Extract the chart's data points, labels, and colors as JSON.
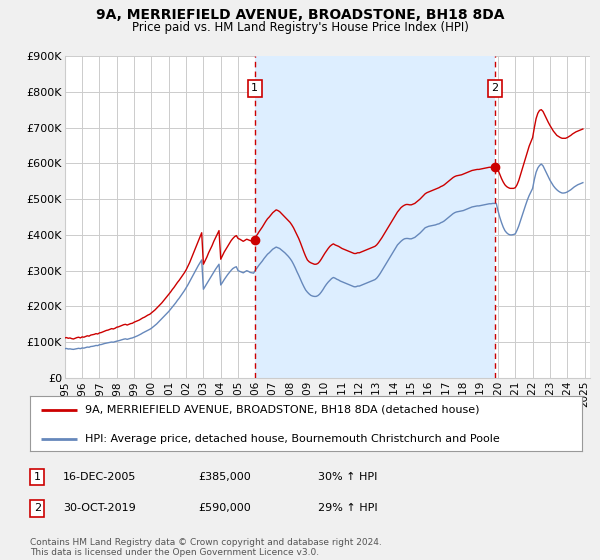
{
  "title": "9A, MERRIEFIELD AVENUE, BROADSTONE, BH18 8DA",
  "subtitle": "Price paid vs. HM Land Registry's House Price Index (HPI)",
  "legend_line1": "9A, MERRIEFIELD AVENUE, BROADSTONE, BH18 8DA (detached house)",
  "legend_line2": "HPI: Average price, detached house, Bournemouth Christchurch and Poole",
  "footnote": "Contains HM Land Registry data © Crown copyright and database right 2024.\nThis data is licensed under the Open Government Licence v3.0.",
  "sale1_date": "16-DEC-2005",
  "sale1_price": "£385,000",
  "sale1_hpi": "30% ↑ HPI",
  "sale1_x": 2005.96,
  "sale1_y": 385000,
  "sale2_date": "30-OCT-2019",
  "sale2_price": "£590,000",
  "sale2_hpi": "29% ↑ HPI",
  "sale2_x": 2019.83,
  "sale2_y": 590000,
  "red_color": "#cc0000",
  "blue_color": "#6688bb",
  "shade_color": "#ddeeff",
  "background_color": "#f0f0f0",
  "plot_bg_color": "#ffffff",
  "ylim": [
    0,
    900000
  ],
  "xlim": [
    1995.0,
    2025.3
  ],
  "red_line_x": [
    1995.0,
    1995.1,
    1995.2,
    1995.3,
    1995.4,
    1995.5,
    1995.6,
    1995.7,
    1995.8,
    1995.9,
    1996.0,
    1996.1,
    1996.2,
    1996.3,
    1996.4,
    1996.5,
    1996.6,
    1996.7,
    1996.8,
    1996.9,
    1997.0,
    1997.1,
    1997.2,
    1997.3,
    1997.4,
    1997.5,
    1997.6,
    1997.7,
    1997.8,
    1997.9,
    1998.0,
    1998.1,
    1998.2,
    1998.3,
    1998.4,
    1998.5,
    1998.6,
    1998.7,
    1998.8,
    1998.9,
    1999.0,
    1999.1,
    1999.2,
    1999.3,
    1999.4,
    1999.5,
    1999.6,
    1999.7,
    1999.8,
    1999.9,
    2000.0,
    2000.1,
    2000.2,
    2000.3,
    2000.4,
    2000.5,
    2000.6,
    2000.7,
    2000.8,
    2000.9,
    2001.0,
    2001.1,
    2001.2,
    2001.3,
    2001.4,
    2001.5,
    2001.6,
    2001.7,
    2001.8,
    2001.9,
    2002.0,
    2002.1,
    2002.2,
    2002.3,
    2002.4,
    2002.5,
    2002.6,
    2002.7,
    2002.8,
    2002.9,
    2003.0,
    2003.1,
    2003.2,
    2003.3,
    2003.4,
    2003.5,
    2003.6,
    2003.7,
    2003.8,
    2003.9,
    2004.0,
    2004.1,
    2004.2,
    2004.3,
    2004.4,
    2004.5,
    2004.6,
    2004.7,
    2004.8,
    2004.9,
    2005.0,
    2005.1,
    2005.2,
    2005.3,
    2005.4,
    2005.5,
    2005.6,
    2005.7,
    2005.8,
    2005.9,
    2005.96,
    2006.0,
    2006.1,
    2006.2,
    2006.3,
    2006.4,
    2006.5,
    2006.6,
    2006.7,
    2006.8,
    2006.9,
    2007.0,
    2007.1,
    2007.2,
    2007.3,
    2007.4,
    2007.5,
    2007.6,
    2007.7,
    2007.8,
    2007.9,
    2008.0,
    2008.1,
    2008.2,
    2008.3,
    2008.4,
    2008.5,
    2008.6,
    2008.7,
    2008.8,
    2008.9,
    2009.0,
    2009.1,
    2009.2,
    2009.3,
    2009.4,
    2009.5,
    2009.6,
    2009.7,
    2009.8,
    2009.9,
    2010.0,
    2010.1,
    2010.2,
    2010.3,
    2010.4,
    2010.5,
    2010.6,
    2010.7,
    2010.8,
    2010.9,
    2011.0,
    2011.1,
    2011.2,
    2011.3,
    2011.4,
    2011.5,
    2011.6,
    2011.7,
    2011.8,
    2011.9,
    2012.0,
    2012.1,
    2012.2,
    2012.3,
    2012.4,
    2012.5,
    2012.6,
    2012.7,
    2012.8,
    2012.9,
    2013.0,
    2013.1,
    2013.2,
    2013.3,
    2013.4,
    2013.5,
    2013.6,
    2013.7,
    2013.8,
    2013.9,
    2014.0,
    2014.1,
    2014.2,
    2014.3,
    2014.4,
    2014.5,
    2014.6,
    2014.7,
    2014.8,
    2014.9,
    2015.0,
    2015.1,
    2015.2,
    2015.3,
    2015.4,
    2015.5,
    2015.6,
    2015.7,
    2015.8,
    2015.9,
    2016.0,
    2016.1,
    2016.2,
    2016.3,
    2016.4,
    2016.5,
    2016.6,
    2016.7,
    2016.8,
    2016.9,
    2017.0,
    2017.1,
    2017.2,
    2017.3,
    2017.4,
    2017.5,
    2017.6,
    2017.7,
    2017.8,
    2017.9,
    2018.0,
    2018.1,
    2018.2,
    2018.3,
    2018.4,
    2018.5,
    2018.6,
    2018.7,
    2018.8,
    2018.9,
    2019.0,
    2019.1,
    2019.2,
    2019.3,
    2019.4,
    2019.5,
    2019.6,
    2019.7,
    2019.8,
    2019.83,
    2020.0,
    2020.1,
    2020.2,
    2020.3,
    2020.4,
    2020.5,
    2020.6,
    2020.7,
    2020.8,
    2020.9,
    2021.0,
    2021.1,
    2021.2,
    2021.3,
    2021.4,
    2021.5,
    2021.6,
    2021.7,
    2021.8,
    2021.9,
    2022.0,
    2022.1,
    2022.2,
    2022.3,
    2022.4,
    2022.5,
    2022.6,
    2022.7,
    2022.8,
    2022.9,
    2023.0,
    2023.1,
    2023.2,
    2023.3,
    2023.4,
    2023.5,
    2023.6,
    2023.7,
    2023.8,
    2023.9,
    2024.0,
    2024.1,
    2024.2,
    2024.3,
    2024.4,
    2024.5,
    2024.6,
    2024.7,
    2024.8,
    2024.9
  ],
  "red_line_y": [
    112000,
    113000,
    111000,
    112000,
    110000,
    109000,
    111000,
    113000,
    114000,
    112000,
    115000,
    114000,
    116000,
    118000,
    117000,
    120000,
    121000,
    122000,
    124000,
    123000,
    126000,
    127000,
    129000,
    131000,
    133000,
    134000,
    136000,
    138000,
    137000,
    139000,
    142000,
    143000,
    145000,
    147000,
    149000,
    150000,
    148000,
    150000,
    152000,
    153000,
    156000,
    158000,
    160000,
    162000,
    165000,
    168000,
    170000,
    173000,
    176000,
    178000,
    182000,
    186000,
    190000,
    195000,
    200000,
    205000,
    210000,
    216000,
    222000,
    228000,
    234000,
    240000,
    247000,
    253000,
    260000,
    267000,
    273000,
    280000,
    287000,
    294000,
    302000,
    312000,
    322000,
    334000,
    346000,
    358000,
    370000,
    382000,
    394000,
    406000,
    318000,
    328000,
    338000,
    350000,
    360000,
    370000,
    382000,
    392000,
    402000,
    412000,
    332000,
    342000,
    352000,
    360000,
    368000,
    376000,
    384000,
    390000,
    395000,
    398000,
    390000,
    388000,
    385000,
    382000,
    385000,
    388000,
    386000,
    384000,
    383000,
    382000,
    385000,
    395000,
    400000,
    408000,
    415000,
    422000,
    430000,
    438000,
    445000,
    450000,
    456000,
    462000,
    466000,
    470000,
    468000,
    465000,
    460000,
    455000,
    450000,
    445000,
    440000,
    435000,
    428000,
    420000,
    410000,
    400000,
    390000,
    378000,
    365000,
    352000,
    340000,
    330000,
    325000,
    322000,
    320000,
    318000,
    318000,
    320000,
    325000,
    332000,
    340000,
    348000,
    355000,
    362000,
    368000,
    372000,
    375000,
    372000,
    370000,
    368000,
    365000,
    362000,
    360000,
    358000,
    356000,
    354000,
    352000,
    350000,
    348000,
    348000,
    350000,
    350000,
    352000,
    354000,
    356000,
    358000,
    360000,
    362000,
    364000,
    366000,
    368000,
    372000,
    378000,
    385000,
    392000,
    400000,
    408000,
    416000,
    424000,
    432000,
    440000,
    448000,
    456000,
    464000,
    470000,
    476000,
    480000,
    483000,
    485000,
    485000,
    484000,
    484000,
    486000,
    488000,
    492000,
    496000,
    500000,
    505000,
    510000,
    515000,
    518000,
    520000,
    522000,
    524000,
    526000,
    528000,
    530000,
    532000,
    535000,
    537000,
    540000,
    544000,
    548000,
    552000,
    556000,
    560000,
    563000,
    565000,
    566000,
    567000,
    568000,
    570000,
    572000,
    574000,
    576000,
    578000,
    580000,
    581000,
    582000,
    583000,
    583000,
    584000,
    585000,
    586000,
    587000,
    588000,
    589000,
    589000,
    590000,
    590000,
    590000,
    582000,
    570000,
    558000,
    548000,
    540000,
    535000,
    532000,
    530000,
    530000,
    530000,
    532000,
    540000,
    552000,
    568000,
    584000,
    600000,
    616000,
    632000,
    648000,
    660000,
    672000,
    700000,
    725000,
    740000,
    748000,
    750000,
    745000,
    735000,
    725000,
    715000,
    706000,
    698000,
    690000,
    684000,
    678000,
    675000,
    672000,
    670000,
    670000,
    670000,
    672000,
    675000,
    678000,
    682000,
    685000,
    688000,
    690000,
    692000,
    694000,
    696000
  ],
  "blue_line_x": [
    1995.0,
    1995.1,
    1995.2,
    1995.3,
    1995.4,
    1995.5,
    1995.6,
    1995.7,
    1995.8,
    1995.9,
    1996.0,
    1996.1,
    1996.2,
    1996.3,
    1996.4,
    1996.5,
    1996.6,
    1996.7,
    1996.8,
    1996.9,
    1997.0,
    1997.1,
    1997.2,
    1997.3,
    1997.4,
    1997.5,
    1997.6,
    1997.7,
    1997.8,
    1997.9,
    1998.0,
    1998.1,
    1998.2,
    1998.3,
    1998.4,
    1998.5,
    1998.6,
    1998.7,
    1998.8,
    1998.9,
    1999.0,
    1999.1,
    1999.2,
    1999.3,
    1999.4,
    1999.5,
    1999.6,
    1999.7,
    1999.8,
    1999.9,
    2000.0,
    2000.1,
    2000.2,
    2000.3,
    2000.4,
    2000.5,
    2000.6,
    2000.7,
    2000.8,
    2000.9,
    2001.0,
    2001.1,
    2001.2,
    2001.3,
    2001.4,
    2001.5,
    2001.6,
    2001.7,
    2001.8,
    2001.9,
    2002.0,
    2002.1,
    2002.2,
    2002.3,
    2002.4,
    2002.5,
    2002.6,
    2002.7,
    2002.8,
    2002.9,
    2003.0,
    2003.1,
    2003.2,
    2003.3,
    2003.4,
    2003.5,
    2003.6,
    2003.7,
    2003.8,
    2003.9,
    2004.0,
    2004.1,
    2004.2,
    2004.3,
    2004.4,
    2004.5,
    2004.6,
    2004.7,
    2004.8,
    2004.9,
    2005.0,
    2005.1,
    2005.2,
    2005.3,
    2005.4,
    2005.5,
    2005.6,
    2005.7,
    2005.8,
    2005.9,
    2006.0,
    2006.1,
    2006.2,
    2006.3,
    2006.4,
    2006.5,
    2006.6,
    2006.7,
    2006.8,
    2006.9,
    2007.0,
    2007.1,
    2007.2,
    2007.3,
    2007.4,
    2007.5,
    2007.6,
    2007.7,
    2007.8,
    2007.9,
    2008.0,
    2008.1,
    2008.2,
    2008.3,
    2008.4,
    2008.5,
    2008.6,
    2008.7,
    2008.8,
    2008.9,
    2009.0,
    2009.1,
    2009.2,
    2009.3,
    2009.4,
    2009.5,
    2009.6,
    2009.7,
    2009.8,
    2009.9,
    2010.0,
    2010.1,
    2010.2,
    2010.3,
    2010.4,
    2010.5,
    2010.6,
    2010.7,
    2010.8,
    2010.9,
    2011.0,
    2011.1,
    2011.2,
    2011.3,
    2011.4,
    2011.5,
    2011.6,
    2011.7,
    2011.8,
    2011.9,
    2012.0,
    2012.1,
    2012.2,
    2012.3,
    2012.4,
    2012.5,
    2012.6,
    2012.7,
    2012.8,
    2012.9,
    2013.0,
    2013.1,
    2013.2,
    2013.3,
    2013.4,
    2013.5,
    2013.6,
    2013.7,
    2013.8,
    2013.9,
    2014.0,
    2014.1,
    2014.2,
    2014.3,
    2014.4,
    2014.5,
    2014.6,
    2014.7,
    2014.8,
    2014.9,
    2015.0,
    2015.1,
    2015.2,
    2015.3,
    2015.4,
    2015.5,
    2015.6,
    2015.7,
    2015.8,
    2015.9,
    2016.0,
    2016.1,
    2016.2,
    2016.3,
    2016.4,
    2016.5,
    2016.6,
    2016.7,
    2016.8,
    2016.9,
    2017.0,
    2017.1,
    2017.2,
    2017.3,
    2017.4,
    2017.5,
    2017.6,
    2017.7,
    2017.8,
    2017.9,
    2018.0,
    2018.1,
    2018.2,
    2018.3,
    2018.4,
    2018.5,
    2018.6,
    2018.7,
    2018.8,
    2018.9,
    2019.0,
    2019.1,
    2019.2,
    2019.3,
    2019.4,
    2019.5,
    2019.6,
    2019.7,
    2019.8,
    2019.9,
    2020.0,
    2020.1,
    2020.2,
    2020.3,
    2020.4,
    2020.5,
    2020.6,
    2020.7,
    2020.8,
    2020.9,
    2021.0,
    2021.1,
    2021.2,
    2021.3,
    2021.4,
    2021.5,
    2021.6,
    2021.7,
    2021.8,
    2021.9,
    2022.0,
    2022.1,
    2022.2,
    2022.3,
    2022.4,
    2022.5,
    2022.6,
    2022.7,
    2022.8,
    2022.9,
    2023.0,
    2023.1,
    2023.2,
    2023.3,
    2023.4,
    2023.5,
    2023.6,
    2023.7,
    2023.8,
    2023.9,
    2024.0,
    2024.1,
    2024.2,
    2024.3,
    2024.4,
    2024.5,
    2024.6,
    2024.7,
    2024.8,
    2024.9
  ],
  "blue_line_y": [
    82000,
    82500,
    81000,
    81500,
    80500,
    80000,
    81000,
    82000,
    83000,
    82000,
    84000,
    83500,
    85000,
    86500,
    86000,
    88000,
    88500,
    89500,
    91000,
    90500,
    93000,
    93500,
    95000,
    96500,
    97500,
    98500,
    99500,
    100500,
    100000,
    101500,
    103000,
    104000,
    105500,
    107000,
    108500,
    109500,
    108000,
    109500,
    111000,
    112000,
    114000,
    116000,
    118000,
    120500,
    123000,
    126000,
    128500,
    131000,
    133500,
    136000,
    139000,
    143000,
    147000,
    151000,
    156000,
    161000,
    166000,
    171000,
    176000,
    181000,
    186000,
    192000,
    198000,
    204000,
    210000,
    217000,
    223000,
    230000,
    237000,
    244000,
    252000,
    260000,
    269000,
    278000,
    287000,
    296000,
    305000,
    314000,
    322000,
    330000,
    248000,
    256000,
    264000,
    272000,
    280000,
    288000,
    296000,
    304000,
    311000,
    318000,
    260000,
    267000,
    275000,
    282000,
    289000,
    295000,
    301000,
    306000,
    309000,
    311000,
    300000,
    298000,
    296000,
    294000,
    297000,
    300000,
    298000,
    295000,
    294000,
    293000,
    302000,
    308000,
    315000,
    321000,
    327000,
    334000,
    340000,
    346000,
    350000,
    355000,
    360000,
    363000,
    366000,
    364000,
    362000,
    358000,
    354000,
    350000,
    345000,
    340000,
    334000,
    327000,
    318000,
    308000,
    297000,
    287000,
    276000,
    265000,
    255000,
    246000,
    240000,
    235000,
    231000,
    229000,
    228000,
    228000,
    230000,
    234000,
    240000,
    247000,
    255000,
    262000,
    268000,
    273000,
    278000,
    281000,
    279000,
    276000,
    274000,
    271000,
    269000,
    267000,
    265000,
    263000,
    261000,
    259000,
    257000,
    255000,
    255000,
    257000,
    257000,
    259000,
    261000,
    263000,
    265000,
    267000,
    269000,
    271000,
    273000,
    275000,
    279000,
    285000,
    292000,
    300000,
    308000,
    316000,
    324000,
    332000,
    340000,
    348000,
    356000,
    364000,
    372000,
    377000,
    382000,
    386000,
    389000,
    390000,
    390000,
    389000,
    389000,
    391000,
    393000,
    397000,
    401000,
    405000,
    410000,
    415000,
    420000,
    422000,
    424000,
    425000,
    426000,
    427000,
    428000,
    430000,
    431000,
    434000,
    436000,
    439000,
    443000,
    447000,
    451000,
    455000,
    459000,
    462000,
    464000,
    465000,
    466000,
    467000,
    468000,
    470000,
    472000,
    474000,
    476000,
    478000,
    479000,
    480000,
    481000,
    481000,
    482000,
    483000,
    484000,
    485000,
    486000,
    487000,
    487000,
    488000,
    488000,
    488000,
    468000,
    450000,
    435000,
    422000,
    412000,
    406000,
    402000,
    400000,
    400000,
    401000,
    403000,
    413000,
    425000,
    440000,
    456000,
    470000,
    484000,
    498000,
    510000,
    520000,
    530000,
    555000,
    575000,
    587000,
    594000,
    598000,
    593000,
    583000,
    573000,
    563000,
    553000,
    545000,
    537000,
    531000,
    526000,
    522000,
    519000,
    517000,
    517000,
    518000,
    520000,
    523000,
    526000,
    530000,
    534000,
    537000,
    540000,
    542000,
    544000,
    546000
  ]
}
